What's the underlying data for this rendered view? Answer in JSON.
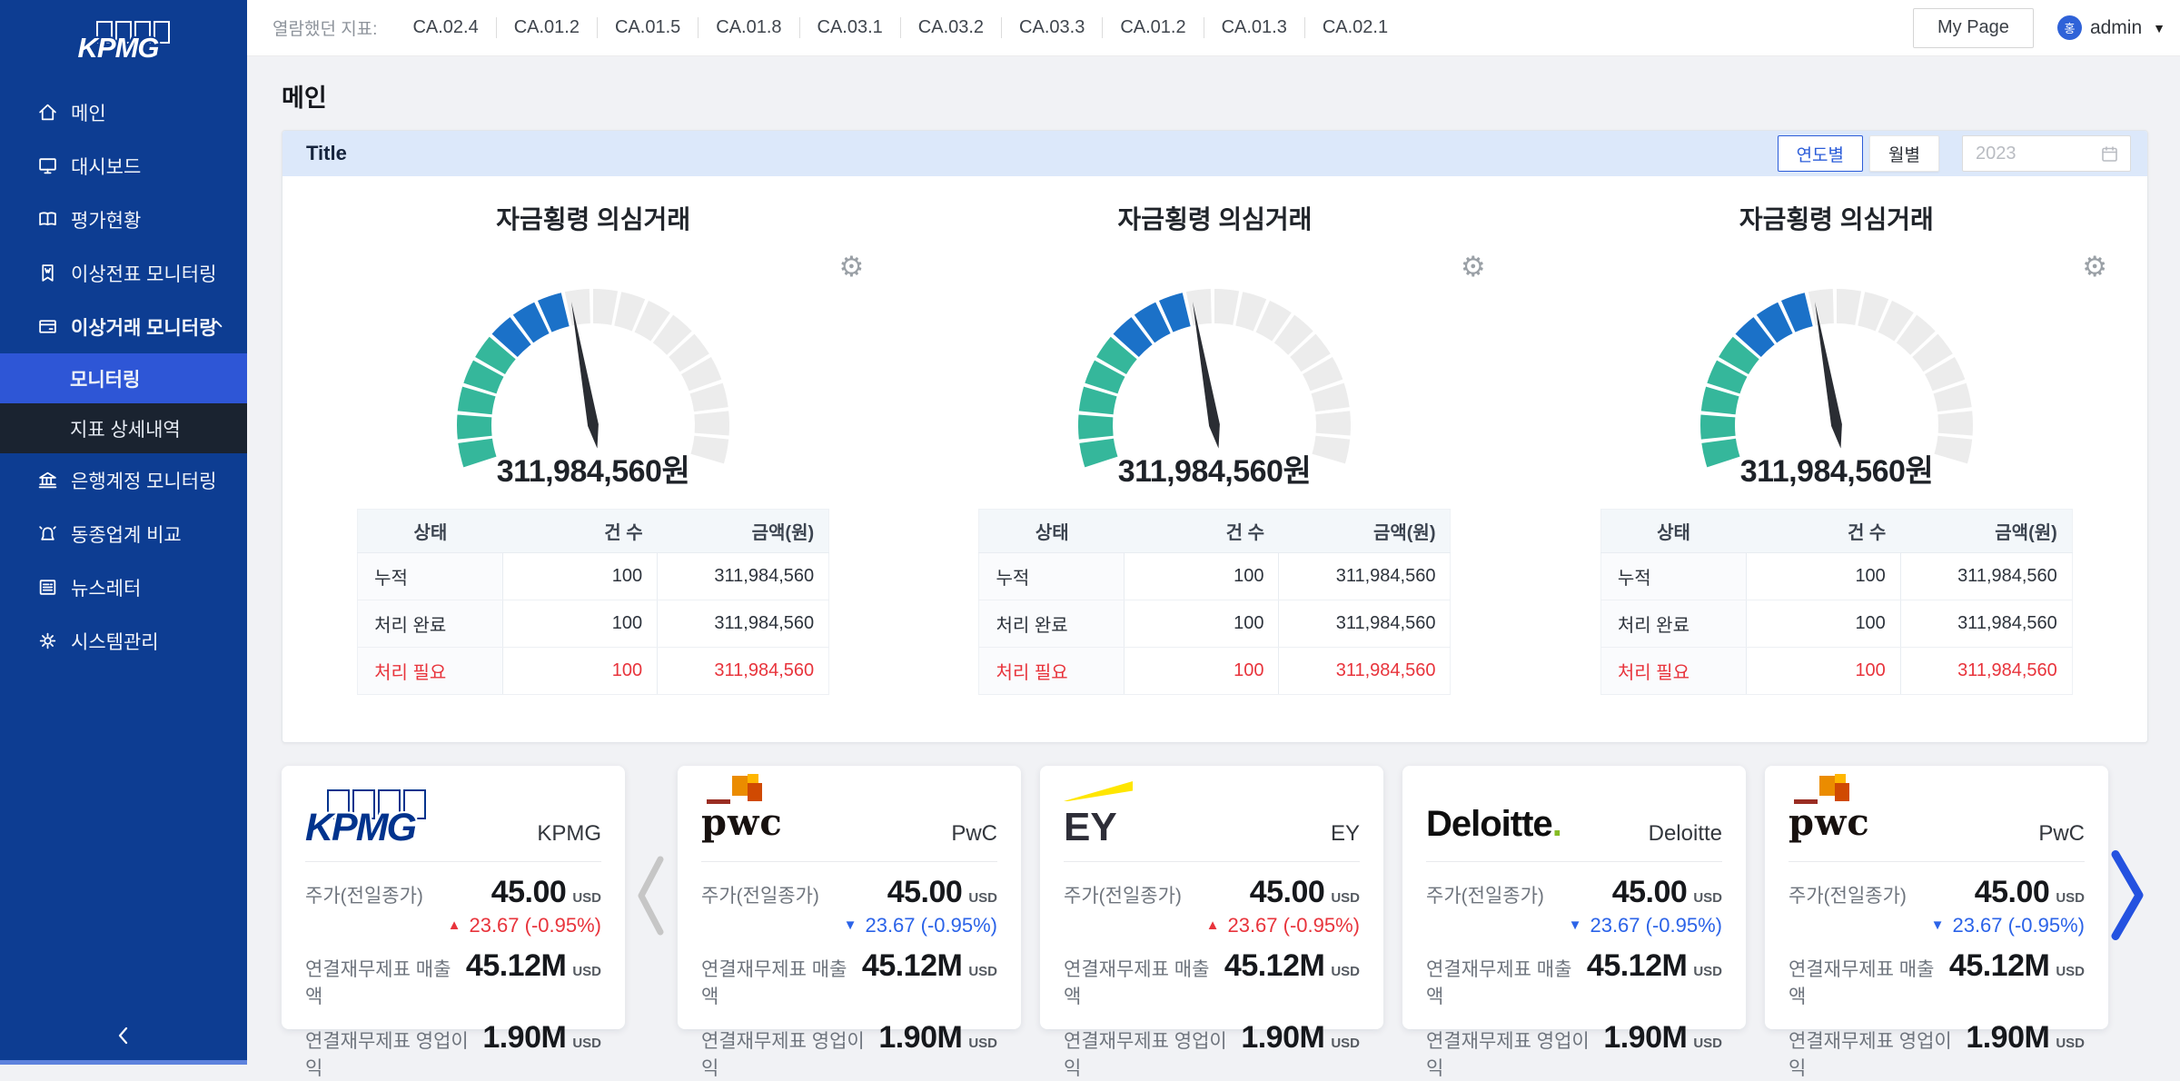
{
  "colors": {
    "sidebar_bg": "#0d3d92",
    "sidebar_active_bg": "#2e56d6",
    "sidebar_submenu_bg": "#1a2330",
    "panel_header_bg": "#dce8fa",
    "accent_blue": "#2b5cd9",
    "gauge_low": "#35b79b",
    "gauge_high": "#1b71c8",
    "gauge_empty": "#ececec",
    "alert_red": "#e8343c",
    "change_up_red": "#e8343c",
    "change_down_blue": "#2b63e8",
    "brand_kpmg": "#00338d",
    "brand_ey_yellow": "#ffe600",
    "brand_deloitte_green": "#86bc25",
    "avatar_bg": "#2f62d8"
  },
  "icons": {
    "gear": "⚙",
    "caret_down": "▼",
    "triangle_up": "▲",
    "triangle_down": "▼"
  },
  "sidebar": {
    "logo_text": "KPMG",
    "items": [
      {
        "label": "메인"
      },
      {
        "label": "대시보드"
      },
      {
        "label": "평가현황"
      },
      {
        "label": "이상전표 모니터링"
      },
      {
        "label": "이상거래 모니터링"
      },
      {
        "label": "모니터링"
      },
      {
        "label": "지표 상세내역"
      },
      {
        "label": "은행계정 모니터링"
      },
      {
        "label": "동종업계 비교"
      },
      {
        "label": "뉴스레터"
      },
      {
        "label": "시스템관리"
      }
    ]
  },
  "topbar": {
    "viewed_label": "열람했던 지표:",
    "codes": [
      "CA.02.4",
      "CA.01.2",
      "CA.01.5",
      "CA.01.8",
      "CA.03.1",
      "CA.03.2",
      "CA.03.3",
      "CA.01.2",
      "CA.01.3",
      "CA.02.1"
    ],
    "my_page": "My Page",
    "user": "admin",
    "avatar_char": "홍"
  },
  "page": {
    "title": "메인"
  },
  "panel": {
    "title": "Title",
    "toggle": {
      "yearly": "연도별",
      "monthly": "월별"
    },
    "year_value": "2023"
  },
  "gauge_chart": {
    "type": "gauge",
    "segments_total": 18,
    "segments_low": 5,
    "segments_high": 3,
    "start_angle": 198,
    "end_angle": -18,
    "needle_angle": 100,
    "value": 311984560,
    "unit": "원"
  },
  "gauges": [
    {
      "title": "자금횡령 의심거래",
      "value_label": "311,984,560원",
      "table": {
        "headers": [
          "상태",
          "건 수",
          "금액(원)"
        ],
        "rows": [
          {
            "status": "누적",
            "count": "100",
            "amount": "311,984,560"
          },
          {
            "status": "처리 완료",
            "count": "100",
            "amount": "311,984,560"
          },
          {
            "status": "처리 필요",
            "count": "100",
            "amount": "311,984,560"
          }
        ]
      }
    },
    {
      "title": "자금횡령 의심거래",
      "value_label": "311,984,560원",
      "table": {
        "headers": [
          "상태",
          "건 수",
          "금액(원)"
        ],
        "rows": [
          {
            "status": "누적",
            "count": "100",
            "amount": "311,984,560"
          },
          {
            "status": "처리 완료",
            "count": "100",
            "amount": "311,984,560"
          },
          {
            "status": "처리 필요",
            "count": "100",
            "amount": "311,984,560"
          }
        ]
      }
    },
    {
      "title": "자금횡령 의심거래",
      "value_label": "311,984,560원",
      "table": {
        "headers": [
          "상태",
          "건 수",
          "금액(원)"
        ],
        "rows": [
          {
            "status": "누적",
            "count": "100",
            "amount": "311,984,560"
          },
          {
            "status": "처리 완료",
            "count": "100",
            "amount": "311,984,560"
          },
          {
            "status": "처리 필요",
            "count": "100",
            "amount": "311,984,560"
          }
        ]
      }
    }
  ],
  "cards": [
    {
      "company": "KPMG",
      "logo_text": "KPMG",
      "price_label": "주가(전일종가)",
      "price": "45.00",
      "currency": "USD",
      "change": "23.67  (-0.95%)",
      "direction": "up",
      "revenue_label": "연결재무제표 매출액",
      "revenue": "45.12M",
      "profit_label": "연결재무제표 영업이익",
      "profit": "1.90M"
    },
    {
      "company": "PwC",
      "logo_text": "pwc",
      "price_label": "주가(전일종가)",
      "price": "45.00",
      "currency": "USD",
      "change": "23.67  (-0.95%)",
      "direction": "down",
      "revenue_label": "연결재무제표 매출액",
      "revenue": "45.12M",
      "profit_label": "연결재무제표 영업이익",
      "profit": "1.90M"
    },
    {
      "company": "EY",
      "logo_text": "EY",
      "price_label": "주가(전일종가)",
      "price": "45.00",
      "currency": "USD",
      "change": "23.67  (-0.95%)",
      "direction": "up",
      "revenue_label": "연결재무제표 매출액",
      "revenue": "45.12M",
      "profit_label": "연결재무제표 영업이익",
      "profit": "1.90M"
    },
    {
      "company": "Deloitte",
      "logo_text": "Deloitte",
      "logo_suffix": ".",
      "price_label": "주가(전일종가)",
      "price": "45.00",
      "currency": "USD",
      "change": "23.67  (-0.95%)",
      "direction": "down",
      "revenue_label": "연결재무제표 매출액",
      "revenue": "45.12M",
      "profit_label": "연결재무제표 영업이익",
      "profit": "1.90M"
    },
    {
      "company": "PwC",
      "logo_text": "pwc",
      "price_label": "주가(전일종가)",
      "price": "45.00",
      "currency": "USD",
      "change": "23.67  (-0.95%)",
      "direction": "down",
      "revenue_label": "연결재무제표 매출액",
      "revenue": "45.12M",
      "profit_label": "연결재무제표 영업이익",
      "profit": "1.90M"
    }
  ]
}
